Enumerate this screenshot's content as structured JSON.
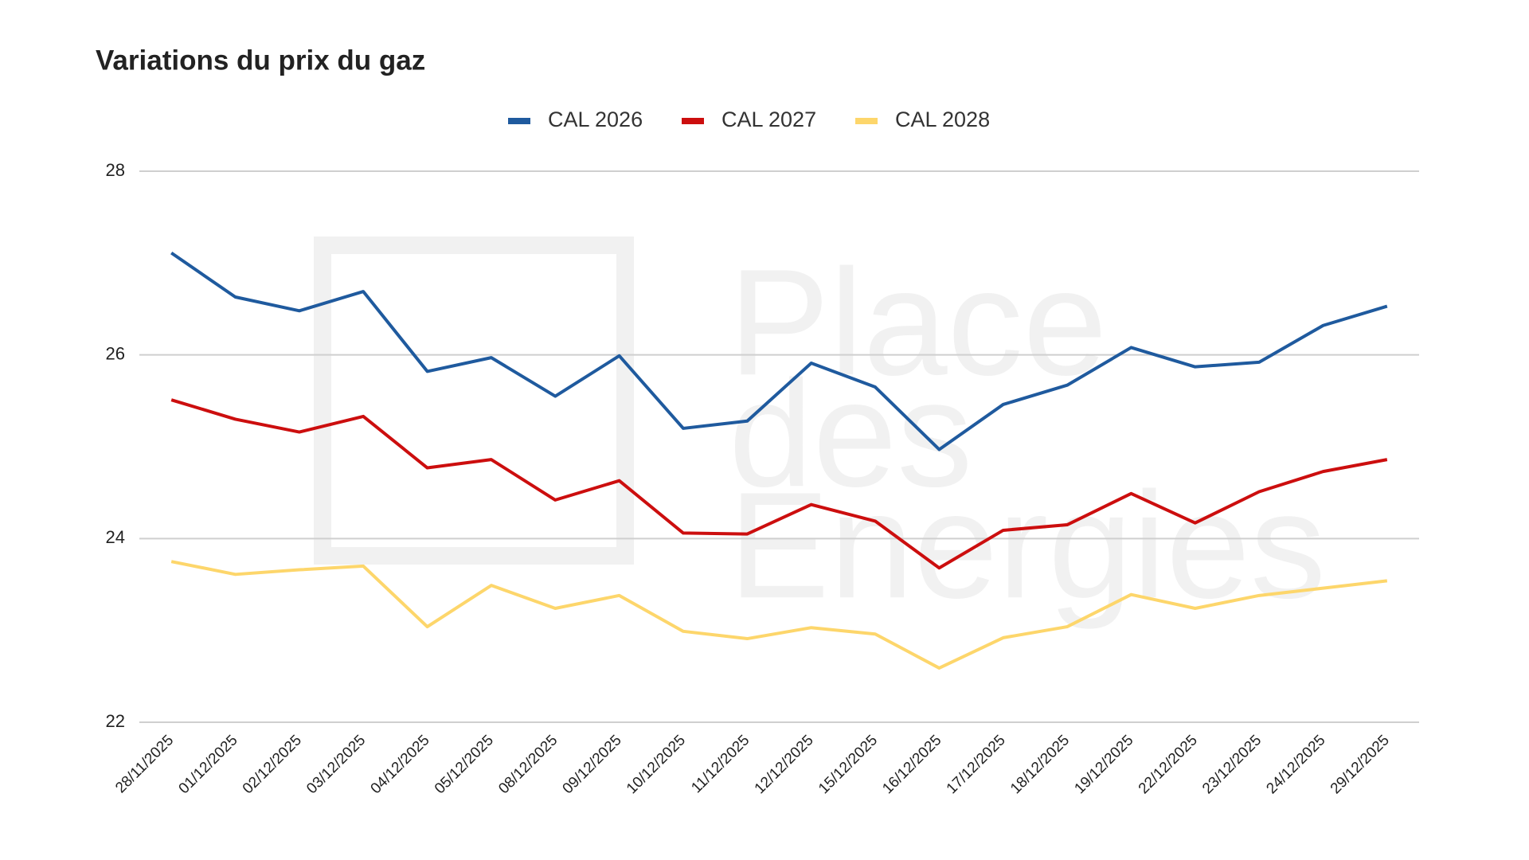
{
  "chart_data": {
    "type": "line",
    "title": "Variations du prix du gaz",
    "watermark": [
      "Place",
      "des",
      "Energies"
    ],
    "categories": [
      "28/11/2025",
      "01/12/2025",
      "02/12/2025",
      "03/12/2025",
      "04/12/2025",
      "05/12/2025",
      "08/12/2025",
      "09/12/2025",
      "10/12/2025",
      "11/12/2025",
      "12/12/2025",
      "15/12/2025",
      "16/12/2025",
      "17/12/2025",
      "18/12/2025",
      "19/12/2025",
      "22/12/2025",
      "23/12/2025",
      "24/12/2025",
      "29/12/2025"
    ],
    "series": [
      {
        "name": "CAL 2026",
        "color": "#1f5a9e",
        "values": [
          27.11,
          26.63,
          26.48,
          26.69,
          25.82,
          25.97,
          25.55,
          25.99,
          25.2,
          25.28,
          25.91,
          25.65,
          24.97,
          25.46,
          25.67,
          26.08,
          25.87,
          25.92,
          26.32,
          26.53
        ]
      },
      {
        "name": "CAL 2027",
        "color": "#cc0e0e",
        "values": [
          25.51,
          25.3,
          25.16,
          25.33,
          24.77,
          24.86,
          24.42,
          24.63,
          24.06,
          24.05,
          24.37,
          24.19,
          23.68,
          24.09,
          24.15,
          24.49,
          24.17,
          24.51,
          24.73,
          24.86
        ]
      },
      {
        "name": "CAL 2028",
        "color": "#fdd66b",
        "values": [
          23.75,
          23.61,
          23.66,
          23.7,
          23.04,
          23.49,
          23.24,
          23.38,
          22.99,
          22.91,
          23.03,
          22.96,
          22.59,
          22.92,
          23.04,
          23.39,
          23.24,
          23.38,
          23.46,
          23.54
        ]
      }
    ],
    "ylim": [
      22,
      28
    ],
    "yticks": [
      22,
      24,
      26,
      28
    ],
    "grid": true,
    "legend": "top"
  }
}
